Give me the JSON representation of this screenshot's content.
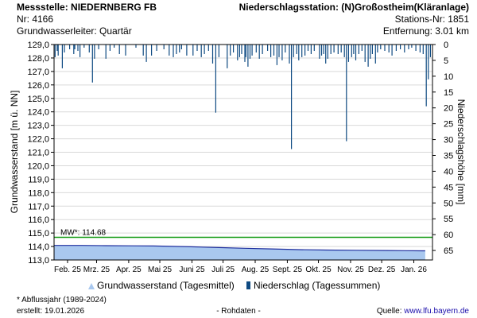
{
  "header": {
    "left_line1": "Messstelle: NIEDERNBERG FB",
    "left_line2": "Nr: 4166",
    "left_line3": "Grundwasserleiter: Quartär",
    "right_line1": "Niederschlagsstation: (N)Großostheim(Kläranlage)",
    "right_line2": "Stations-Nr: 1851",
    "right_line3": "Entfernung: 3.01 km"
  },
  "footer": {
    "note": "* Abflussjahr (1989-2024)",
    "created": "erstellt:  19.01.2026",
    "status": "- Rohdaten -",
    "source_label": "Quelle:",
    "source_url": "www.lfu.bayern.de"
  },
  "colors": {
    "groundwater_fill": "#a9c8ef",
    "groundwater_line": "#1f2f9e",
    "precip_bar": "#0e4a82",
    "mw_line": "#119911",
    "grid": "#d9d9d9"
  },
  "chart_data": {
    "type": "area+bar",
    "y_left_label": "Grundwasserstand [m ü. NN]",
    "y_right_label": "Niederschlagshöhe [mm]",
    "y_left_lim": [
      113.0,
      129.0
    ],
    "y_left_ticks": [
      "129,0",
      "128,0",
      "127,0",
      "126,0",
      "125,0",
      "124,0",
      "123,0",
      "122,0",
      "121,0",
      "120,0",
      "119,0",
      "118,0",
      "117,0",
      "116,0",
      "115,0",
      "114,0",
      "113,0"
    ],
    "y_right_lim": [
      0,
      68
    ],
    "y_right_ticks": [
      "0",
      "5",
      "10",
      "15",
      "20",
      "25",
      "30",
      "35",
      "40",
      "45",
      "50",
      "55",
      "60",
      "65"
    ],
    "x_start": "2025-01-19",
    "x_end": "2026-01-19",
    "x_ticks": [
      {
        "date": "2025-02-01",
        "label": "Feb. 25"
      },
      {
        "date": "2025-03-01",
        "label": "Mrz. 25"
      },
      {
        "date": "2025-04-01",
        "label": "Apr. 25"
      },
      {
        "date": "2025-05-01",
        "label": "Mai 25"
      },
      {
        "date": "2025-06-01",
        "label": "Juni 25"
      },
      {
        "date": "2025-07-01",
        "label": "Juli 25"
      },
      {
        "date": "2025-08-01",
        "label": "Aug. 25"
      },
      {
        "date": "2025-09-01",
        "label": "Sept. 25"
      },
      {
        "date": "2025-10-01",
        "label": "Okt. 25"
      },
      {
        "date": "2025-11-01",
        "label": "Nov. 25"
      },
      {
        "date": "2025-12-01",
        "label": "Dez. 25"
      },
      {
        "date": "2026-01-01",
        "label": "Jan. 26"
      }
    ],
    "mw": {
      "label": "MW*: 114.68",
      "value": 114.68
    },
    "groundwater": {
      "name": "Grundwasserstand (Tagesmittel)",
      "points": [
        [
          "2025-01-19",
          114.08
        ],
        [
          "2025-02-15",
          114.08
        ],
        [
          "2025-03-10",
          114.06
        ],
        [
          "2025-04-05",
          114.05
        ],
        [
          "2025-04-25",
          114.04
        ],
        [
          "2025-05-31",
          113.98
        ],
        [
          "2025-06-27",
          113.92
        ],
        [
          "2025-07-22",
          113.87
        ],
        [
          "2025-08-17",
          113.82
        ],
        [
          "2025-09-12",
          113.77
        ],
        [
          "2025-10-08",
          113.74
        ],
        [
          "2025-11-06",
          113.72
        ],
        [
          "2025-12-06",
          113.7
        ],
        [
          "2026-01-09",
          113.68
        ],
        [
          "2026-01-12",
          113.68
        ]
      ]
    },
    "precipitation": {
      "name": "Niederschlag (Tagessummen)",
      "points": [
        [
          "2025-01-20",
          4.0
        ],
        [
          "2025-01-22",
          2.0
        ],
        [
          "2025-01-23",
          3.5
        ],
        [
          "2025-01-27",
          7.5
        ],
        [
          "2025-01-29",
          2.5
        ],
        [
          "2025-02-03",
          1.5
        ],
        [
          "2025-02-07",
          3.0
        ],
        [
          "2025-02-08",
          1.5
        ],
        [
          "2025-02-11",
          2.0
        ],
        [
          "2025-02-13",
          4.0
        ],
        [
          "2025-02-17",
          1.0
        ],
        [
          "2025-02-22",
          2.5
        ],
        [
          "2025-02-25",
          12.0
        ],
        [
          "2025-02-27",
          4.5
        ],
        [
          "2025-03-03",
          1.5
        ],
        [
          "2025-03-10",
          4.5
        ],
        [
          "2025-03-14",
          2.0
        ],
        [
          "2025-03-18",
          1.0
        ],
        [
          "2025-03-23",
          3.0
        ],
        [
          "2025-03-29",
          3.5
        ],
        [
          "2025-04-08",
          1.0
        ],
        [
          "2025-04-15",
          3.5
        ],
        [
          "2025-04-18",
          5.5
        ],
        [
          "2025-04-23",
          3.5
        ],
        [
          "2025-04-28",
          2.0
        ],
        [
          "2025-05-05",
          1.5
        ],
        [
          "2025-05-10",
          3.5
        ],
        [
          "2025-05-14",
          4.0
        ],
        [
          "2025-05-17",
          3.0
        ],
        [
          "2025-05-20",
          2.5
        ],
        [
          "2025-05-22",
          1.5
        ],
        [
          "2025-05-27",
          3.5
        ],
        [
          "2025-06-02",
          3.5
        ],
        [
          "2025-06-06",
          2.0
        ],
        [
          "2025-06-10",
          4.0
        ],
        [
          "2025-06-13",
          3.0
        ],
        [
          "2025-06-17",
          2.0
        ],
        [
          "2025-06-21",
          6.0
        ],
        [
          "2025-06-24",
          21.5
        ],
        [
          "2025-06-27",
          4.0
        ],
        [
          "2025-07-05",
          7.5
        ],
        [
          "2025-07-08",
          3.5
        ],
        [
          "2025-07-11",
          2.5
        ],
        [
          "2025-07-15",
          5.0
        ],
        [
          "2025-07-17",
          4.0
        ],
        [
          "2025-07-19",
          3.0
        ],
        [
          "2025-07-22",
          5.5
        ],
        [
          "2025-07-23",
          4.0
        ],
        [
          "2025-07-25",
          7.0
        ],
        [
          "2025-07-27",
          4.5
        ],
        [
          "2025-07-29",
          3.5
        ],
        [
          "2025-08-02",
          2.5
        ],
        [
          "2025-08-05",
          4.5
        ],
        [
          "2025-08-08",
          3.0
        ],
        [
          "2025-08-13",
          2.0
        ],
        [
          "2025-08-16",
          4.0
        ],
        [
          "2025-08-19",
          3.5
        ],
        [
          "2025-08-22",
          6.5
        ],
        [
          "2025-08-24",
          4.0
        ],
        [
          "2025-08-27",
          5.0
        ],
        [
          "2025-08-30",
          2.5
        ],
        [
          "2025-09-03",
          6.0
        ],
        [
          "2025-09-05",
          33.0
        ],
        [
          "2025-09-07",
          4.0
        ],
        [
          "2025-09-10",
          3.0
        ],
        [
          "2025-09-12",
          5.0
        ],
        [
          "2025-09-15",
          4.0
        ],
        [
          "2025-09-18",
          3.5
        ],
        [
          "2025-09-21",
          2.0
        ],
        [
          "2025-09-24",
          3.0
        ],
        [
          "2025-09-27",
          2.0
        ],
        [
          "2025-10-02",
          4.5
        ],
        [
          "2025-10-04",
          3.5
        ],
        [
          "2025-10-06",
          3.0
        ],
        [
          "2025-10-08",
          6.0
        ],
        [
          "2025-10-10",
          4.5
        ],
        [
          "2025-10-13",
          3.0
        ],
        [
          "2025-10-16",
          2.5
        ],
        [
          "2025-10-20",
          3.0
        ],
        [
          "2025-10-23",
          2.5
        ],
        [
          "2025-10-26",
          4.0
        ],
        [
          "2025-10-28",
          30.5
        ],
        [
          "2025-10-30",
          5.5
        ],
        [
          "2025-11-02",
          4.0
        ],
        [
          "2025-11-04",
          3.0
        ],
        [
          "2025-11-06",
          5.0
        ],
        [
          "2025-11-09",
          3.0
        ],
        [
          "2025-11-12",
          2.0
        ],
        [
          "2025-11-15",
          5.5
        ],
        [
          "2025-11-18",
          7.0
        ],
        [
          "2025-11-20",
          4.5
        ],
        [
          "2025-11-22",
          3.0
        ],
        [
          "2025-11-25",
          6.0
        ],
        [
          "2025-11-27",
          2.5
        ],
        [
          "2025-11-30",
          1.5
        ],
        [
          "2025-12-04",
          2.0
        ],
        [
          "2025-12-08",
          2.5
        ],
        [
          "2025-12-11",
          3.5
        ],
        [
          "2025-12-15",
          2.0
        ],
        [
          "2025-12-19",
          1.5
        ],
        [
          "2025-12-23",
          2.5
        ],
        [
          "2025-12-27",
          1.5
        ],
        [
          "2025-12-30",
          1.0
        ],
        [
          "2026-01-03",
          2.0
        ],
        [
          "2026-01-07",
          2.5
        ],
        [
          "2026-01-10",
          3.0
        ],
        [
          "2026-01-13",
          19.5
        ],
        [
          "2026-01-15",
          11.0
        ],
        [
          "2026-01-17",
          4.0
        ]
      ]
    }
  }
}
